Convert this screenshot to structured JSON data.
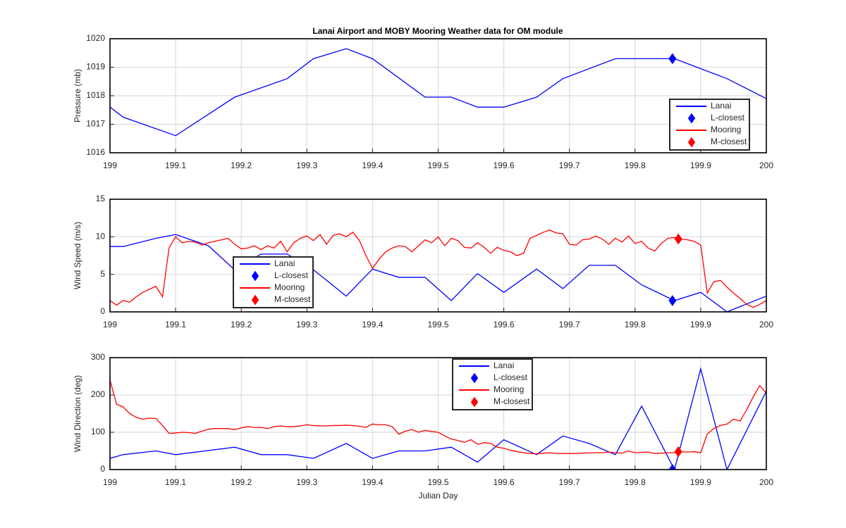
{
  "chart_data": [
    {
      "type": "line",
      "title": "Lanai Airport and MOBY Mooring Weather data for OM module",
      "ylabel": "Pressure (mb)",
      "xlim": [
        199,
        200
      ],
      "xticks": [
        199,
        199.1,
        199.2,
        199.3,
        199.4,
        199.5,
        199.6,
        199.7,
        199.8,
        199.9,
        200
      ],
      "ylim": [
        1016,
        1020
      ],
      "yticks": [
        1016,
        1017,
        1018,
        1019,
        1020
      ],
      "grid": true,
      "legend": "southeast",
      "series": [
        {
          "name": "Lanai",
          "color": "#0000ff",
          "x": [
            199,
            199.02,
            199.1,
            199.19,
            199.27,
            199.31,
            199.36,
            199.4,
            199.48,
            199.52,
            199.56,
            199.6,
            199.65,
            199.69,
            199.77,
            199.86,
            199.94,
            200
          ],
          "values": [
            1017.6,
            1017.25,
            1016.6,
            1017.95,
            1018.6,
            1019.3,
            1019.65,
            1019.3,
            1017.95,
            1017.95,
            1017.6,
            1017.6,
            1017.95,
            1018.6,
            1019.3,
            1019.3,
            1018.6,
            1017.9
          ]
        },
        {
          "name": "L-closest",
          "color": "#0000ff",
          "marker": "diamond",
          "x": [
            199.857
          ],
          "values": [
            1019.3
          ]
        },
        {
          "name": "Mooring",
          "color": "#ff0000",
          "x": [],
          "values": []
        },
        {
          "name": "M-closest",
          "color": "#ff0000",
          "marker": "diamond",
          "x": [],
          "values": []
        }
      ]
    },
    {
      "type": "line",
      "ylabel": "Wind Speed (m/s)",
      "xlim": [
        199,
        200
      ],
      "xticks": [
        199,
        199.1,
        199.2,
        199.3,
        199.4,
        199.5,
        199.6,
        199.7,
        199.8,
        199.9,
        200
      ],
      "ylim": [
        0,
        15
      ],
      "yticks": [
        0,
        5,
        10,
        15
      ],
      "grid": true,
      "legend": "southwest",
      "series": [
        {
          "name": "Lanai",
          "color": "#0000ff",
          "x": [
            199,
            199.02,
            199.07,
            199.1,
            199.15,
            199.19,
            199.23,
            199.27,
            199.31,
            199.36,
            199.4,
            199.44,
            199.48,
            199.52,
            199.56,
            199.6,
            199.65,
            199.69,
            199.73,
            199.77,
            199.81,
            199.86,
            199.9,
            199.94,
            200
          ],
          "values": [
            8.7,
            8.7,
            9.8,
            10.3,
            8.8,
            5.6,
            7.7,
            7.7,
            5.6,
            2.1,
            5.7,
            4.6,
            4.6,
            1.5,
            5.1,
            2.6,
            5.7,
            3.1,
            6.2,
            6.2,
            3.6,
            1.5,
            2.6,
            0,
            2.1
          ]
        },
        {
          "name": "L-closest",
          "color": "#0000ff",
          "marker": "diamond",
          "x": [
            199.857
          ],
          "values": [
            1.5
          ]
        },
        {
          "name": "Mooring",
          "color": "#ff0000",
          "x": [
            199,
            199.01,
            199.02,
            199.03,
            199.04,
            199.05,
            199.06,
            199.07,
            199.08,
            199.09,
            199.1,
            199.11,
            199.12,
            199.13,
            199.14,
            199.15,
            199.16,
            199.17,
            199.18,
            199.19,
            199.2,
            199.21,
            199.22,
            199.23,
            199.24,
            199.25,
            199.26,
            199.27,
            199.28,
            199.29,
            199.3,
            199.31,
            199.32,
            199.33,
            199.34,
            199.35,
            199.36,
            199.37,
            199.38,
            199.39,
            199.4,
            199.41,
            199.42,
            199.43,
            199.44,
            199.45,
            199.46,
            199.47,
            199.48,
            199.49,
            199.5,
            199.51,
            199.52,
            199.53,
            199.54,
            199.55,
            199.56,
            199.57,
            199.58,
            199.59,
            199.6,
            199.61,
            199.62,
            199.63,
            199.64,
            199.65,
            199.66,
            199.67,
            199.68,
            199.69,
            199.7,
            199.71,
            199.72,
            199.73,
            199.74,
            199.75,
            199.76,
            199.77,
            199.78,
            199.79,
            199.8,
            199.81,
            199.82,
            199.83,
            199.84,
            199.85,
            199.86,
            199.87,
            199.88,
            199.89,
            199.9,
            199.91,
            199.92,
            199.93,
            199.94,
            199.95,
            199.96,
            199.97,
            199.98,
            199.99,
            200
          ],
          "values": [
            1.5,
            0.9,
            1.5,
            1.3,
            2.0,
            2.6,
            3.0,
            3.4,
            2.0,
            8.5,
            10.0,
            9.2,
            9.4,
            9.3,
            8.9,
            9.2,
            9.4,
            9.6,
            9.8,
            9.0,
            8.4,
            8.5,
            8.8,
            8.3,
            8.8,
            8.5,
            9.4,
            8.0,
            9.2,
            9.8,
            10.1,
            9.5,
            10.3,
            9.0,
            10.2,
            10.4,
            10.0,
            10.6,
            9.5,
            7.5,
            5.8,
            7.0,
            8.0,
            8.5,
            8.8,
            8.7,
            8.0,
            8.8,
            9.6,
            9.2,
            10.0,
            8.8,
            9.8,
            9.5,
            8.6,
            8.5,
            9.2,
            8.6,
            7.8,
            8.6,
            8.2,
            8.0,
            7.5,
            7.8,
            9.8,
            10.2,
            10.6,
            10.9,
            10.5,
            10.4,
            9.0,
            8.9,
            9.6,
            9.7,
            10.1,
            9.7,
            9.0,
            9.8,
            9.3,
            10.1,
            9.1,
            9.4,
            8.5,
            8.1,
            9.1,
            9.8,
            9.9,
            9.7,
            9.6,
            9.4,
            8.9,
            2.5,
            4.0,
            4.2,
            3.3,
            2.5,
            1.8,
            1.0,
            0.6,
            1.0,
            1.5
          ]
        },
        {
          "name": "M-closest",
          "color": "#ff0000",
          "marker": "diamond",
          "x": [
            199.866
          ],
          "values": [
            9.7
          ]
        }
      ]
    },
    {
      "type": "line",
      "ylabel": "Wind Direction (deg)",
      "xlabel": "Julian Day",
      "xlim": [
        199,
        200
      ],
      "xticks": [
        199,
        199.1,
        199.2,
        199.3,
        199.4,
        199.5,
        199.6,
        199.7,
        199.8,
        199.9,
        200
      ],
      "ylim": [
        0,
        300
      ],
      "yticks": [
        0,
        100,
        200,
        300
      ],
      "grid": true,
      "legend": "north",
      "series": [
        {
          "name": "Lanai",
          "color": "#0000ff",
          "x": [
            199,
            199.02,
            199.07,
            199.1,
            199.19,
            199.23,
            199.27,
            199.31,
            199.36,
            199.4,
            199.44,
            199.48,
            199.52,
            199.56,
            199.6,
            199.65,
            199.69,
            199.73,
            199.77,
            199.81,
            199.86,
            199.9,
            199.94,
            200
          ],
          "values": [
            30,
            40,
            50,
            40,
            60,
            40,
            40,
            30,
            70,
            30,
            50,
            50,
            60,
            20,
            80,
            40,
            90,
            70,
            40,
            170,
            0,
            270,
            0,
            210
          ]
        },
        {
          "name": "L-closest",
          "color": "#0000ff",
          "marker": "diamond",
          "x": [
            199.857
          ],
          "values": [
            0
          ]
        },
        {
          "name": "Mooring",
          "color": "#ff0000",
          "x": [
            199,
            199.01,
            199.02,
            199.03,
            199.04,
            199.05,
            199.06,
            199.07,
            199.08,
            199.09,
            199.1,
            199.11,
            199.12,
            199.13,
            199.14,
            199.15,
            199.16,
            199.17,
            199.18,
            199.19,
            199.2,
            199.21,
            199.22,
            199.23,
            199.24,
            199.25,
            199.26,
            199.27,
            199.28,
            199.29,
            199.3,
            199.31,
            199.32,
            199.33,
            199.34,
            199.35,
            199.36,
            199.37,
            199.38,
            199.39,
            199.4,
            199.41,
            199.42,
            199.43,
            199.44,
            199.45,
            199.46,
            199.47,
            199.48,
            199.49,
            199.5,
            199.51,
            199.52,
            199.53,
            199.54,
            199.55,
            199.56,
            199.57,
            199.58,
            199.59,
            199.6,
            199.61,
            199.62,
            199.63,
            199.64,
            199.65,
            199.66,
            199.67,
            199.68,
            199.69,
            199.7,
            199.71,
            199.72,
            199.73,
            199.74,
            199.75,
            199.76,
            199.77,
            199.78,
            199.79,
            199.8,
            199.81,
            199.82,
            199.83,
            199.84,
            199.85,
            199.86,
            199.87,
            199.88,
            199.89,
            199.9,
            199.91,
            199.92,
            199.93,
            199.94,
            199.95,
            199.96,
            199.97,
            199.98,
            199.99,
            200
          ],
          "values": [
            240,
            175,
            168,
            150,
            140,
            135,
            138,
            137,
            118,
            97,
            98,
            100,
            99,
            97,
            103,
            108,
            110,
            110,
            110,
            107,
            112,
            115,
            113,
            113,
            110,
            115,
            117,
            115,
            115,
            117,
            120,
            118,
            117,
            117,
            118,
            118,
            119,
            118,
            116,
            113,
            122,
            120,
            120,
            115,
            95,
            103,
            107,
            100,
            105,
            102,
            100,
            90,
            82,
            78,
            73,
            80,
            68,
            72,
            70,
            60,
            57,
            52,
            48,
            45,
            43,
            42,
            44,
            45,
            43,
            43,
            43,
            43,
            44,
            45,
            45,
            45,
            47,
            45,
            44,
            50,
            45,
            46,
            47,
            43,
            44,
            45,
            45,
            48,
            47,
            48,
            45,
            95,
            110,
            118,
            122,
            135,
            130,
            160,
            195,
            225,
            205
          ]
        },
        {
          "name": "M-closest",
          "color": "#ff0000",
          "marker": "diamond",
          "x": [
            199.866
          ],
          "values": [
            48
          ]
        }
      ]
    }
  ]
}
